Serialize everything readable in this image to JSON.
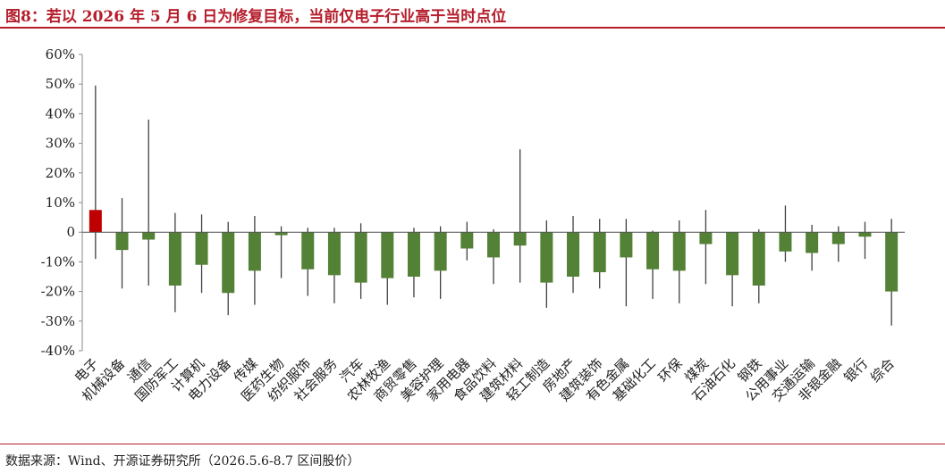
{
  "title": "图8：若以 2026 年 5 月 6 日为修复目标，当前仅电子行业高于当时点位",
  "source": "数据来源：Wind、开源证券研究所（2026.5.6-8.7 区间股价）",
  "colors": {
    "title": "#b51d2b",
    "positive": "#c00000",
    "negative": "#538135",
    "wick": "#404040"
  },
  "chart_data": {
    "type": "bar",
    "title": "",
    "xlabel": "",
    "ylabel": "",
    "ylim": [
      -0.4,
      0.6
    ],
    "yticks": [
      -0.4,
      -0.3,
      -0.2,
      -0.1,
      0,
      0.1,
      0.2,
      0.3,
      0.4,
      0.5,
      0.6
    ],
    "ytick_labels": [
      "-40%",
      "-30%",
      "-20%",
      "-10%",
      "0",
      "10%",
      "20%",
      "30%",
      "40%",
      "50%",
      "60%"
    ],
    "categories": [
      "电子",
      "机械设备",
      "通信",
      "国防军工",
      "计算机",
      "电力设备",
      "传媒",
      "医药生物",
      "纺织服饰",
      "社会服务",
      "汽车",
      "农林牧渔",
      "商贸零售",
      "美容护理",
      "家用电器",
      "食品饮料",
      "建筑材料",
      "轻工制造",
      "房地产",
      "建筑装饰",
      "有色金属",
      "基础化工",
      "环保",
      "煤炭",
      "石油石化",
      "钢铁",
      "公用事业",
      "交通运输",
      "非银金融",
      "银行",
      "综合"
    ],
    "values": [
      0.075,
      -0.06,
      -0.025,
      -0.18,
      -0.11,
      -0.205,
      -0.13,
      -0.01,
      -0.125,
      -0.145,
      -0.17,
      -0.155,
      -0.15,
      -0.13,
      -0.055,
      -0.085,
      -0.045,
      -0.17,
      -0.15,
      -0.135,
      -0.085,
      -0.125,
      -0.13,
      -0.04,
      -0.145,
      -0.18,
      -0.065,
      -0.07,
      -0.04,
      -0.015,
      -0.2
    ],
    "high": [
      0.495,
      0.115,
      0.38,
      0.065,
      0.06,
      0.035,
      0.055,
      0.02,
      0.015,
      0.015,
      0.03,
      0.0,
      0.015,
      0.02,
      0.035,
      0.01,
      0.28,
      0.04,
      0.055,
      0.045,
      0.045,
      0.005,
      0.04,
      0.075,
      0.0,
      0.01,
      0.09,
      0.025,
      0.02,
      0.035,
      0.045
    ],
    "low": [
      -0.09,
      -0.19,
      -0.18,
      -0.27,
      -0.205,
      -0.28,
      -0.245,
      -0.155,
      -0.215,
      -0.24,
      -0.225,
      -0.245,
      -0.22,
      -0.225,
      -0.095,
      -0.175,
      -0.17,
      -0.255,
      -0.205,
      -0.19,
      -0.25,
      -0.225,
      -0.24,
      -0.175,
      -0.25,
      -0.24,
      -0.1,
      -0.13,
      -0.1,
      -0.09,
      -0.315
    ],
    "legend": "none",
    "grid": false
  }
}
